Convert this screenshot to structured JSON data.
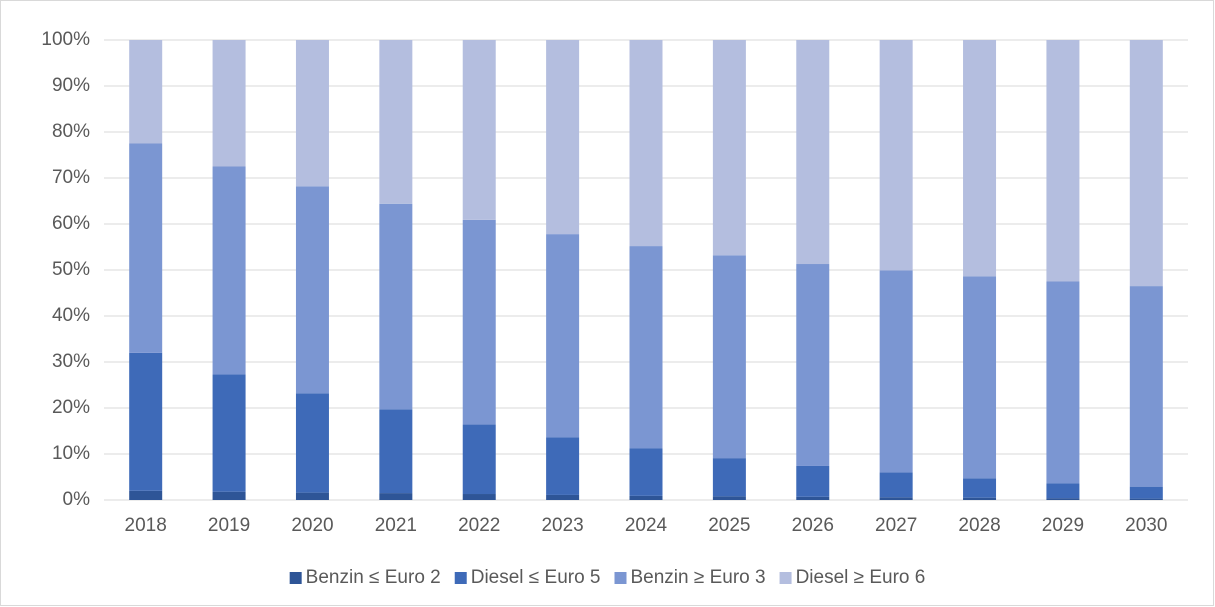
{
  "chart_data": {
    "type": "stacked_bar",
    "categories": [
      "2018",
      "2019",
      "2020",
      "2021",
      "2022",
      "2023",
      "2024",
      "2025",
      "2026",
      "2027",
      "2028",
      "2029",
      "2030"
    ],
    "series": [
      {
        "name": "Benzin ≤ Euro 2",
        "color": "#2e5597",
        "values": [
          2,
          1.8,
          1.6,
          1.5,
          1.3,
          1.1,
          0.9,
          0.8,
          0.7,
          0.6,
          0.5,
          0.4,
          0.3
        ]
      },
      {
        "name": "Diesel ≤ Euro 5",
        "color": "#3e6ab8",
        "values": [
          30,
          25.5,
          21.6,
          18.2,
          15.1,
          12.5,
          10.3,
          8.3,
          6.7,
          5.4,
          4.2,
          3.2,
          2.6
        ]
      },
      {
        "name": "Benzin ≥ Euro 3",
        "color": "#7b96d2",
        "values": [
          45.5,
          45.2,
          45,
          44.7,
          44.5,
          44.2,
          44,
          44.1,
          43.9,
          43.9,
          43.9,
          43.9,
          43.6
        ]
      },
      {
        "name": "Diesel ≥ Euro 6",
        "color": "#b4bedf",
        "values": [
          22.5,
          27.5,
          31.8,
          35.6,
          39.1,
          42.2,
          44.8,
          46.8,
          48.7,
          50.1,
          51.4,
          52.5,
          53.5
        ]
      }
    ],
    "ylim": [
      0,
      100
    ],
    "yticks": [
      {
        "value": 0,
        "label": "0%"
      },
      {
        "value": 10,
        "label": "10%"
      },
      {
        "value": 20,
        "label": "20%"
      },
      {
        "value": 30,
        "label": "30%"
      },
      {
        "value": 40,
        "label": "40%"
      },
      {
        "value": 50,
        "label": "50%"
      },
      {
        "value": 60,
        "label": "60%"
      },
      {
        "value": 70,
        "label": "70%"
      },
      {
        "value": 80,
        "label": "80%"
      },
      {
        "value": 90,
        "label": "90%"
      },
      {
        "value": 100,
        "label": "100%"
      }
    ],
    "grid": true,
    "legend": "bottom"
  }
}
